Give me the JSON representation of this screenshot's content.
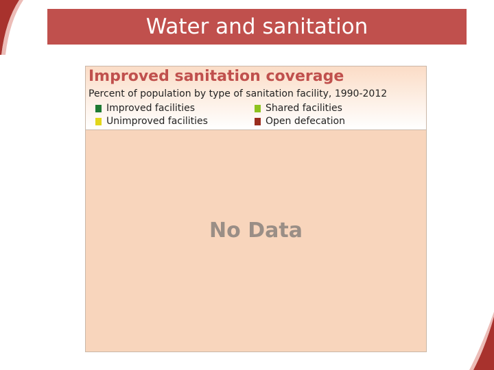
{
  "slide": {
    "title": "Water and sanitation"
  },
  "colors": {
    "accent": "#c0504d",
    "panel": "#f8d5bc",
    "improved": "#1e7a32",
    "shared": "#8dc21f",
    "unimproved": "#e2d61a",
    "open_defecation": "#9b2c1e"
  },
  "chart_data": {
    "type": "bar",
    "title": "Improved sanitation coverage",
    "subtitle": "Percent of population by type of sanitation facility, 1990-2012",
    "legend": [
      {
        "name": "Improved facilities",
        "color": "#1e7a32"
      },
      {
        "name": "Shared facilities",
        "color": "#8dc21f"
      },
      {
        "name": "Unimproved facilities",
        "color": "#e2d61a"
      },
      {
        "name": "Open defecation",
        "color": "#9b2c1e"
      }
    ],
    "legend_placement": "top",
    "categories": [],
    "series": [],
    "no_data_text": "No Data"
  }
}
